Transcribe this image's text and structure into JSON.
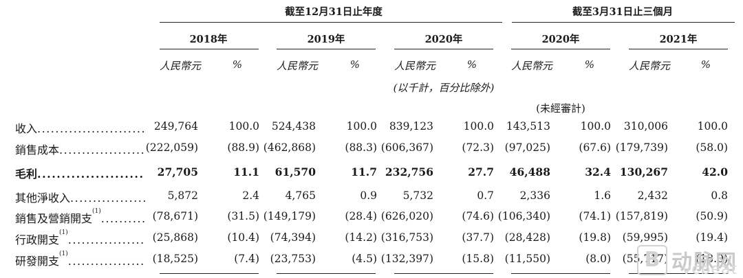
{
  "header": {
    "group_year": "截至12月31日止年度",
    "group_quarter": "截至3月31日止三個月",
    "years": [
      "2018年",
      "2019年",
      "2020年",
      "2020年",
      "2021年"
    ],
    "unit_rmb": "人民幣元",
    "unit_pct": "%",
    "note_thousands": "(以千計，百分比除外)",
    "note_unaudited": "(未經審計)"
  },
  "rows": [
    {
      "label": "收入",
      "sup": "",
      "bold": false,
      "values": [
        "249,764",
        "100.0",
        "524,438",
        "100.0",
        "839,123",
        "100.0",
        "143,513",
        "100.0",
        "310,006",
        "100.0"
      ]
    },
    {
      "label": "銷售成本",
      "sup": "",
      "bold": false,
      "values": [
        "(222,059)",
        "(88.9)",
        "(462,868)",
        "(88.3)",
        "(606,367)",
        "(72.3)",
        "(97,025)",
        "(67.6)",
        "(179,739)",
        "(58.0)"
      ]
    },
    {
      "label": "毛利",
      "sup": "",
      "bold": true,
      "values": [
        "27,705",
        "11.1",
        "61,570",
        "11.7",
        "232,756",
        "27.7",
        "46,488",
        "32.4",
        "130,267",
        "42.0"
      ]
    },
    {
      "label": "其他淨收入",
      "sup": "",
      "bold": false,
      "values": [
        "5,872",
        "2.4",
        "4,765",
        "0.9",
        "5,732",
        "0.7",
        "2,336",
        "1.6",
        "2,432",
        "0.8"
      ]
    },
    {
      "label": "銷售及營銷開支",
      "sup": "(1)",
      "bold": false,
      "values": [
        "(78,671)",
        "(31.5)",
        "(149,179)",
        "(28.4)",
        "(626,020)",
        "(74.6)",
        "(106,340)",
        "(74.1)",
        "(157,819)",
        "(50.9)"
      ]
    },
    {
      "label": "行政開支",
      "sup": "(1)",
      "bold": false,
      "values": [
        "(25,868)",
        "(10.4)",
        "(74,394)",
        "(14.2)",
        "(316,753)",
        "(37.7)",
        "(28,428)",
        "(19.8)",
        "(59,995)",
        "(19.4)"
      ]
    },
    {
      "label": "研發開支",
      "sup": "(1)",
      "bold": false,
      "values": [
        "(18,525)",
        "(7.4)",
        "(23,753)",
        "(4.5)",
        "(132,397)",
        "(15.8)",
        "(11,550)",
        "(8.0)",
        "(55,717)",
        "(18.0)"
      ]
    }
  ],
  "watermark": {
    "logo": "B",
    "cn": "动脉网",
    "en": "vcbeat"
  }
}
